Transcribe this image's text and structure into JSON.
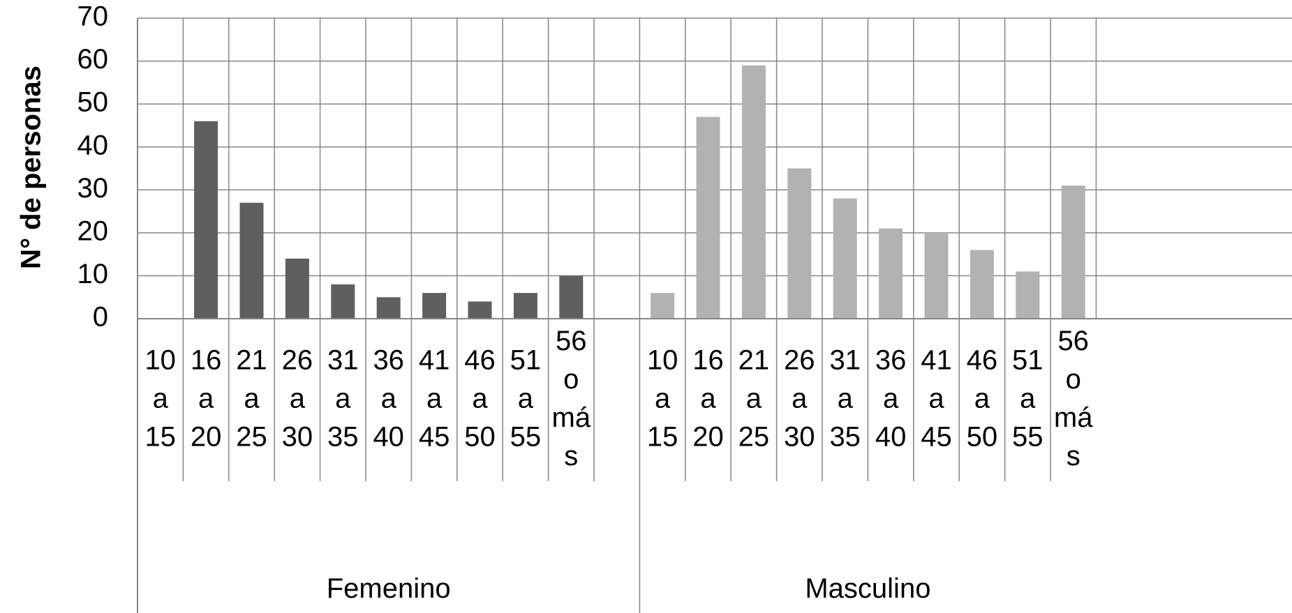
{
  "chart_data": {
    "type": "bar",
    "title": "",
    "ylabel": "N° de personas",
    "xlabel": "",
    "ylim": [
      0,
      70
    ],
    "yticks": [
      0,
      10,
      20,
      30,
      40,
      50,
      60,
      70
    ],
    "grid": true,
    "groups": [
      {
        "name": "Femenino",
        "color": "#5f5f5f",
        "categories": [
          [
            "10",
            "a",
            "15"
          ],
          [
            "16",
            "a",
            "20"
          ],
          [
            "21",
            "a",
            "25"
          ],
          [
            "26",
            "a",
            "30"
          ],
          [
            "31",
            "a",
            "35"
          ],
          [
            "36",
            "a",
            "40"
          ],
          [
            "41",
            "a",
            "45"
          ],
          [
            "46",
            "a",
            "50"
          ],
          [
            "51",
            "a",
            "55"
          ],
          [
            "56",
            "o",
            "má",
            "s"
          ],
          []
        ],
        "values": [
          0,
          46,
          27,
          14,
          8,
          5,
          6,
          4,
          6,
          10,
          null
        ]
      },
      {
        "name": "Masculino",
        "color": "#b2b2b2",
        "categories": [
          [
            "10",
            "a",
            "15"
          ],
          [
            "16",
            "a",
            "20"
          ],
          [
            "21",
            "a",
            "25"
          ],
          [
            "26",
            "a",
            "30"
          ],
          [
            "31",
            "a",
            "35"
          ],
          [
            "36",
            "a",
            "40"
          ],
          [
            "41",
            "a",
            "45"
          ],
          [
            "46",
            "a",
            "50"
          ],
          [
            "51",
            "a",
            "55"
          ],
          [
            "56",
            "o",
            "má",
            "s"
          ]
        ],
        "values": [
          6,
          47,
          59,
          35,
          28,
          21,
          20,
          16,
          11,
          31
        ]
      }
    ]
  }
}
